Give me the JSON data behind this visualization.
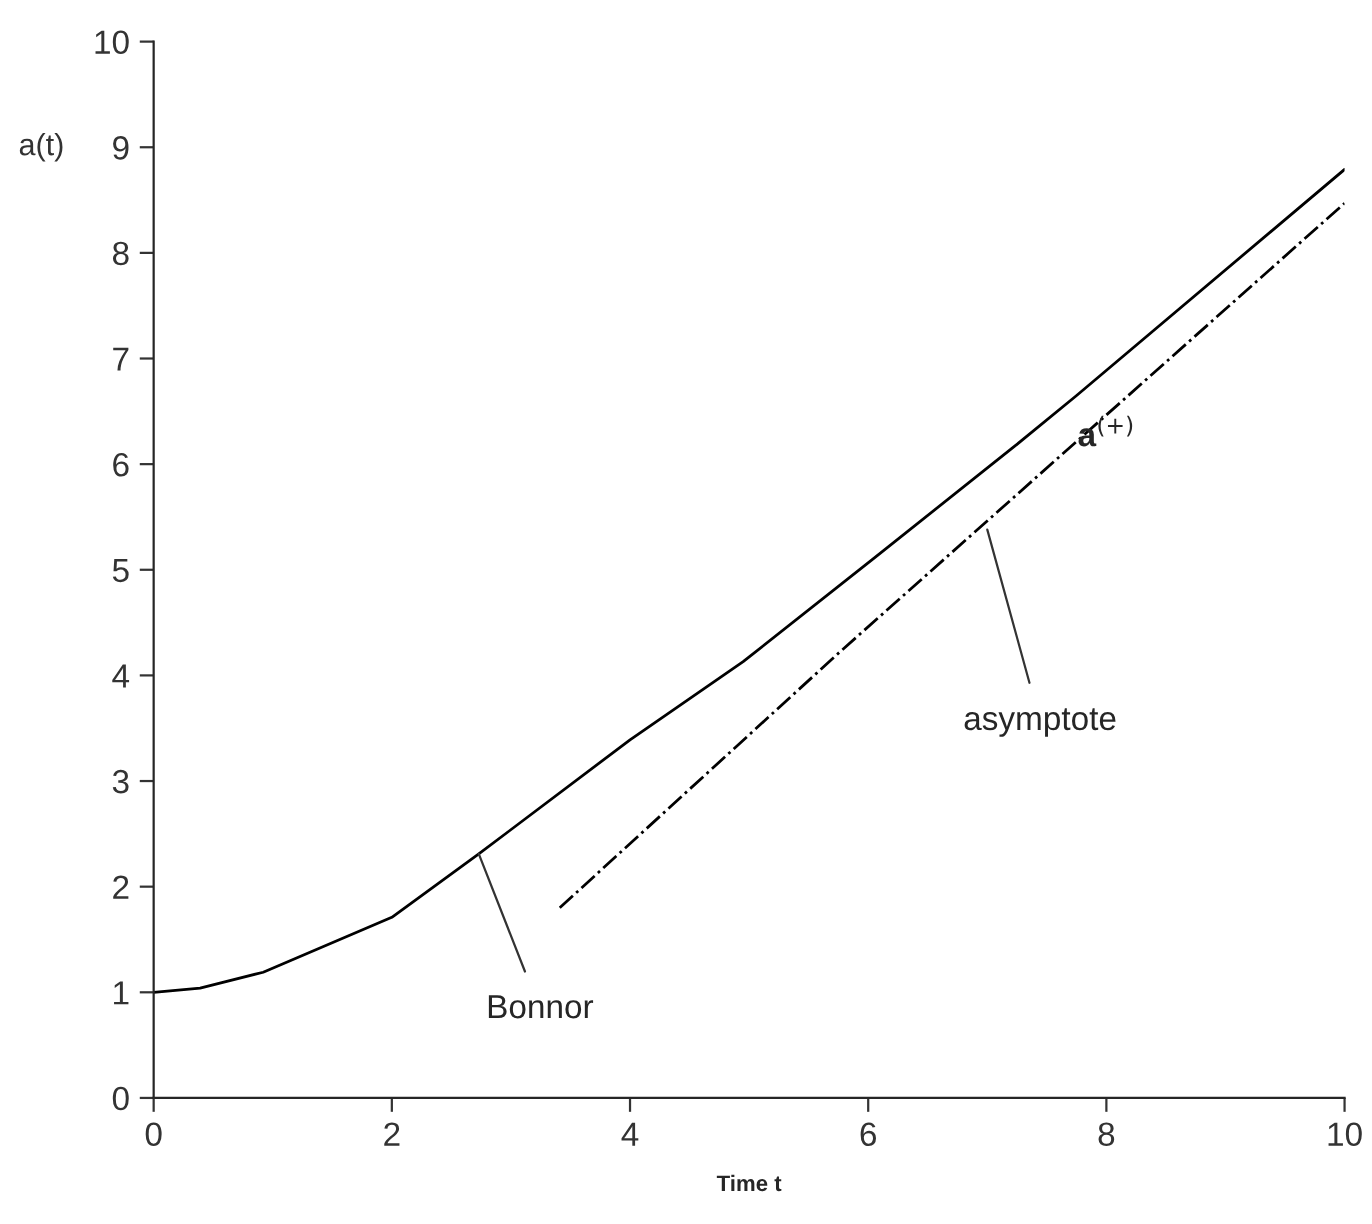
{
  "chart_data": {
    "type": "line",
    "xlabel": "Time t",
    "ylabel": "a(t)",
    "xlim": [
      0,
      10
    ],
    "ylim": [
      0,
      10
    ],
    "xticks": [
      0,
      2,
      4,
      6,
      8,
      10
    ],
    "yticks": [
      0,
      1,
      2,
      3,
      4,
      5,
      6,
      7,
      8,
      9,
      10
    ],
    "grid": false,
    "legend": false,
    "marker": "none",
    "series": [
      {
        "color": "#000000",
        "line_style": "solid",
        "x": [
          0,
          0.39,
          0.92,
          2.0,
          2.73,
          4.0,
          4.95,
          6.06,
          7.23,
          7.75,
          10
        ],
        "values": [
          1.0,
          1.04,
          1.19,
          1.71,
          2.31,
          3.39,
          4.13,
          5.12,
          6.17,
          6.65,
          8.79
        ]
      },
      {
        "color": "#000000",
        "line_style": "dashdot",
        "x": [
          3.41,
          5.76,
          10
        ],
        "values": [
          1.8,
          4.22,
          8.47
        ]
      }
    ],
    "annotations": [
      {
        "text": "Bonnor",
        "x": 2.73,
        "y": 2.31
      },
      {
        "text": "asymptote",
        "x": 7.0,
        "y": 5.38
      },
      "a$^{(+)}$"
    ]
  }
}
